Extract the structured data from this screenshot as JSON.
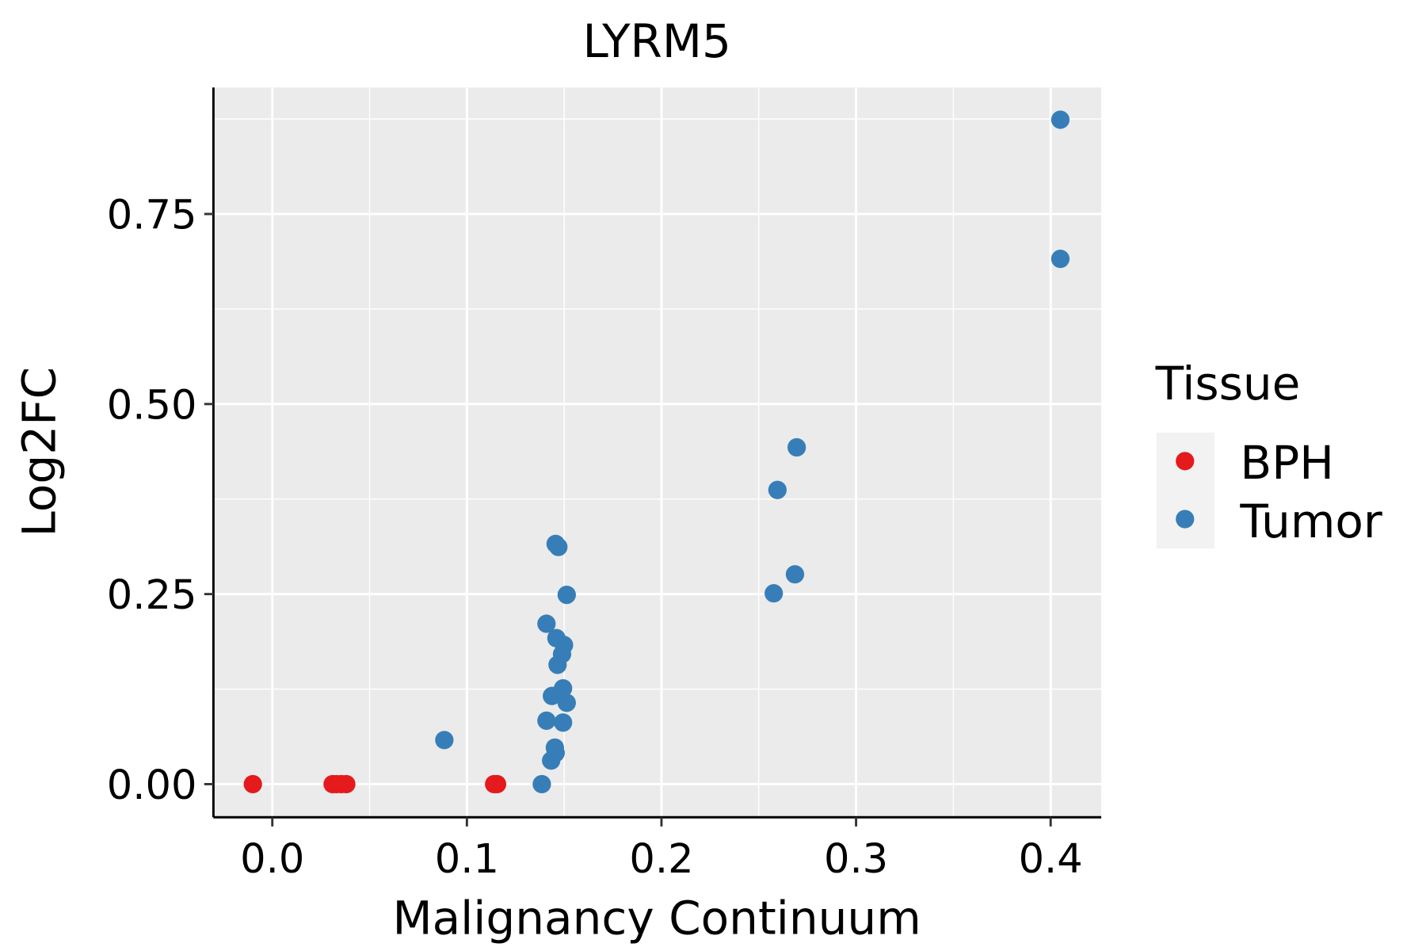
{
  "chart_data": {
    "type": "scatter",
    "title": "LYRM5",
    "xlabel": "Malignancy Continuum",
    "ylabel": "Log2FC",
    "xlim": [
      -0.03,
      0.425
    ],
    "ylim": [
      -0.085,
      0.91
    ],
    "xticks": [
      0.0,
      0.1,
      0.2,
      0.3,
      0.4
    ],
    "xtick_labels": [
      "0.0",
      "0.1",
      "0.2",
      "0.3",
      "0.4"
    ],
    "yticks": [
      0.0,
      0.25,
      0.5,
      0.75
    ],
    "ytick_labels": [
      "0.00",
      "0.25",
      "0.50",
      "0.75"
    ],
    "grid": true,
    "legend": {
      "title": "Tissue",
      "placement": "right"
    },
    "series": [
      {
        "name": "BPH",
        "color": "#E41A1C",
        "points": [
          [
            -0.01,
            0
          ],
          [
            0.031,
            0
          ],
          [
            0.033,
            0
          ],
          [
            0.0355,
            0
          ],
          [
            0.038,
            0
          ],
          [
            0.114,
            0
          ],
          [
            0.1155,
            0
          ]
        ]
      },
      {
        "name": "Tumor",
        "color": "#377EB8",
        "points": [
          [
            0.405,
            0.874
          ],
          [
            0.405,
            0.691
          ],
          [
            0.2695,
            0.443
          ],
          [
            0.2596,
            0.387
          ],
          [
            0.2686,
            0.276
          ],
          [
            0.2577,
            0.251
          ],
          [
            0.1456,
            0.316
          ],
          [
            0.147,
            0.312
          ],
          [
            0.1513,
            0.249
          ],
          [
            0.1409,
            0.211
          ],
          [
            0.146,
            0.192
          ],
          [
            0.1499,
            0.183
          ],
          [
            0.1489,
            0.171
          ],
          [
            0.1466,
            0.157
          ],
          [
            0.1494,
            0.126
          ],
          [
            0.1437,
            0.116
          ],
          [
            0.1513,
            0.107
          ],
          [
            0.1409,
            0.0835
          ],
          [
            0.1494,
            0.081
          ],
          [
            0.0884,
            0.058
          ],
          [
            0.1452,
            0.048
          ],
          [
            0.1456,
            0.041
          ],
          [
            0.1433,
            0.031
          ],
          [
            0.1385,
            0.0
          ]
        ]
      }
    ]
  }
}
